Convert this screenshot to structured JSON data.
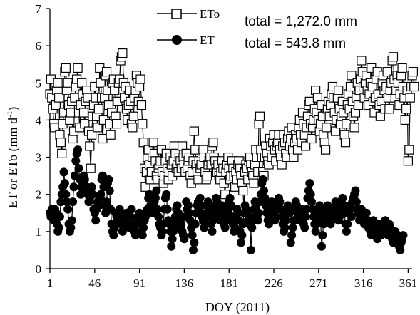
{
  "chart_data": {
    "type": "line",
    "xlabel": "DOY (2011)",
    "ylabel": "ET or ETo (mm d",
    "ylabel_sup": "-1",
    "ylabel_close": ")",
    "xlim": [
      1,
      365
    ],
    "ylim": [
      0,
      7
    ],
    "xticks": [
      1,
      46,
      91,
      136,
      181,
      226,
      271,
      316,
      361
    ],
    "yticks": [
      0,
      1,
      2,
      3,
      4,
      5,
      6,
      7
    ],
    "grid": false,
    "legend": "top-center",
    "series": [
      {
        "name": "ETo",
        "marker": "open-square",
        "color": "#000000",
        "total": "total = 1,272.0 mm",
        "values": [
          4.7,
          5.1,
          4.6,
          4.3,
          3.9,
          3.8,
          4.4,
          4.8,
          5.0,
          4.6,
          3.6,
          3.4,
          3.1,
          3.9,
          4.2,
          5.3,
          5.4,
          4.8,
          5.0,
          4.4,
          4.0,
          4.2,
          4.5,
          3.5,
          3.7,
          4.6,
          4.9,
          5.1,
          5.4,
          4.2,
          3.8,
          4.4,
          5.0,
          4.7,
          4.2,
          3.9,
          4.5,
          4.8,
          4.6,
          3.7,
          3.3,
          2.7,
          3.6,
          4.1,
          4.4,
          4.9,
          4.6,
          4.1,
          3.8,
          4.3,
          5.4,
          5.0,
          4.6,
          3.5,
          4.0,
          4.6,
          5.2,
          5.3,
          4.8,
          4.4,
          3.9,
          3.6,
          4.2,
          5.0,
          5.1,
          4.8,
          4.1,
          3.9,
          4.5,
          5.0,
          5.1,
          5.6,
          5.7,
          5.8,
          5.0,
          4.6,
          4.9,
          4.3,
          4.0,
          4.4,
          4.8,
          4.5,
          3.9,
          3.8,
          4.1,
          4.6,
          4.8,
          5.2,
          5.0,
          4.5,
          4.9,
          5.1,
          4.4,
          3.9,
          3.4,
          2.7,
          2.2,
          2.6,
          3.0,
          3.2,
          2.8,
          2.4,
          2.6,
          3.0,
          3.4,
          3.1,
          2.9,
          2.5,
          2.4,
          2.7,
          2.8,
          2.9,
          3.2,
          2.6,
          2.3,
          2.5,
          2.9,
          3.1,
          2.7,
          2.4,
          2.6,
          3.0,
          2.8,
          2.5,
          2.9,
          3.3,
          3.1,
          2.7,
          2.8,
          2.6,
          3.0,
          2.9,
          2.7,
          3.3,
          3.0,
          2.8,
          2.6,
          3.1,
          2.7,
          2.9,
          3.0,
          2.5,
          2.3,
          2.6,
          2.9,
          3.7,
          3.2,
          2.8,
          2.6,
          2.4,
          2.9,
          2.7,
          2.8,
          3.1,
          3.2,
          3.0,
          2.6,
          2.4,
          2.5,
          2.8,
          2.9,
          3.0,
          2.8,
          3.3,
          3.4,
          3.0,
          2.9,
          2.7,
          2.6,
          2.8,
          2.5,
          2.4,
          2.6,
          2.9,
          2.7,
          2.3,
          2.0,
          2.6,
          2.8,
          3.0,
          2.7,
          2.4,
          2.5,
          2.9,
          2.7,
          2.5,
          2.2,
          2.6,
          2.4,
          2.8,
          2.9,
          2.7,
          2.5,
          2.3,
          2.1,
          1.6,
          2.6,
          2.8,
          2.7,
          2.4,
          2.9,
          3.0,
          2.8,
          2.6,
          2.5,
          2.3,
          2.8,
          3.2,
          3.0,
          2.6,
          3.9,
          4.1,
          3.2,
          3.0,
          2.6,
          2.5,
          3.0,
          3.3,
          3.1,
          2.9,
          2.8,
          3.5,
          3.3,
          3.0,
          3.4,
          3.6,
          3.2,
          2.9,
          3.3,
          3.4,
          3.6,
          3.2,
          3.0,
          2.8,
          3.3,
          3.6,
          3.4,
          3.1,
          3.0,
          3.5,
          3.7,
          3.3,
          3.5,
          3.8,
          3.2,
          3.0,
          3.4,
          3.6,
          3.5,
          3.2,
          3.8,
          4.0,
          3.6,
          3.4,
          4.2,
          3.9,
          3.6,
          3.3,
          3.8,
          4.1,
          4.4,
          4.5,
          3.9,
          3.5,
          3.8,
          4.0,
          4.3,
          4.8,
          4.2,
          4.6,
          4.0,
          3.7,
          3.9,
          4.4,
          4.1,
          3.6,
          3.4,
          3.2,
          3.8,
          4.3,
          4.5,
          4.1,
          4.4,
          4.7,
          4.9,
          4.6,
          4.2,
          3.7,
          4.0,
          4.6,
          4.8,
          4.3,
          3.9,
          4.1,
          4.5,
          4.2,
          3.6,
          3.4,
          3.9,
          4.4,
          4.7,
          4.3,
          4.9,
          5.2,
          4.5,
          4.1,
          3.8,
          4.2,
          4.6,
          5.0,
          4.4,
          4.8,
          5.1,
          5.6,
          5.3,
          4.9,
          4.6,
          5.0,
          5.2,
          4.8,
          4.4,
          4.7,
          5.0,
          5.4,
          4.9,
          4.5,
          4.2,
          4.6,
          5.1,
          5.3,
          4.7,
          4.4,
          4.1,
          4.5,
          5.0,
          5.2,
          4.8,
          4.3,
          4.9,
          5.3,
          4.6,
          4.3,
          4.8,
          5.0,
          5.6,
          5.7,
          5.1,
          4.6,
          4.8,
          5.2,
          5.0,
          4.4,
          4.7,
          5.2,
          5.4,
          4.9,
          4.6,
          4.0,
          4.3,
          4.8,
          2.9,
          3.2,
          4.6,
          4.9,
          5.2,
          5.3,
          4.9
        ]
      },
      {
        "name": "ET",
        "marker": "filled-circle",
        "color": "#000000",
        "total": "total = 543.8 mm",
        "values": [
          1.5,
          1.4,
          1.6,
          1.5,
          1.3,
          1.6,
          1.5,
          1.2,
          1.0,
          1.1,
          1.4,
          1.8,
          2.0,
          2.2,
          2.6,
          2.3,
          2.0,
          1.8,
          1.6,
          1.2,
          1.0,
          1.1,
          1.3,
          1.8,
          2.2,
          2.5,
          2.9,
          3.1,
          3.2,
          2.7,
          2.4,
          2.0,
          2.2,
          2.3,
          2.5,
          2.4,
          2.1,
          2.2,
          2.0,
          1.8,
          1.9,
          2.1,
          2.2,
          2.0,
          1.6,
          1.5,
          1.3,
          1.6,
          1.8,
          1.7,
          1.9,
          2.0,
          2.4,
          2.5,
          2.2,
          1.7,
          1.5,
          1.8,
          2.3,
          2.4,
          2.1,
          1.6,
          1.2,
          1.0,
          0.9,
          1.1,
          1.5,
          1.4,
          1.3,
          1.4,
          1.6,
          1.5,
          1.2,
          1.0,
          1.1,
          1.3,
          1.4,
          1.5,
          1.2,
          1.3,
          1.1,
          1.4,
          1.6,
          1.2,
          1.1,
          1.0,
          0.9,
          1.2,
          1.4,
          1.3,
          1.5,
          1.2,
          1.0,
          0.9,
          1.1,
          1.3,
          1.4,
          1.5,
          1.6,
          1.9,
          2.0,
          1.7,
          1.6,
          1.5,
          1.7,
          1.8,
          1.9,
          2.1,
          1.6,
          1.4,
          1.2,
          1.1,
          0.9,
          1.0,
          1.2,
          1.6,
          1.9,
          2.0,
          1.6,
          1.3,
          1.2,
          1.0,
          0.6,
          0.8,
          1.0,
          1.2,
          1.4,
          1.6,
          1.7,
          1.5,
          1.3,
          1.1,
          1.2,
          1.0,
          0.9,
          0.8,
          1.4,
          1.8,
          1.6,
          1.7,
          1.5,
          1.3,
          1.1,
          0.9,
          0.5,
          0.7,
          1.2,
          1.5,
          1.7,
          1.8,
          1.6,
          1.9,
          1.7,
          1.4,
          1.3,
          1.1,
          1.2,
          1.5,
          1.7,
          1.8,
          1.6,
          1.4,
          1.2,
          1.0,
          1.3,
          1.5,
          1.7,
          1.9,
          1.8,
          1.6,
          1.4,
          1.3,
          1.6,
          1.7,
          1.5,
          1.2,
          1.1,
          1.3,
          1.5,
          1.6,
          1.8,
          1.9,
          1.7,
          1.4,
          1.2,
          1.0,
          1.1,
          1.4,
          1.6,
          1.5,
          1.3,
          1.0,
          0.7,
          0.9,
          1.2,
          1.5,
          1.7,
          1.6,
          1.5,
          1.3,
          1.2,
          1.4,
          0.5,
          1.1,
          1.3,
          1.6,
          1.8,
          1.7,
          1.4,
          1.3,
          1.5,
          1.8,
          2.0,
          2.3,
          2.4,
          2.1,
          1.9,
          1.7,
          1.5,
          1.3,
          1.2,
          1.4,
          1.6,
          1.8,
          1.7,
          1.5,
          1.3,
          1.4,
          1.6,
          1.7,
          1.9,
          1.8,
          1.6,
          1.4,
          1.2,
          1.0,
          1.1,
          1.3,
          1.5,
          1.7,
          1.6,
          1.5,
          0.7,
          0.9,
          1.1,
          1.3,
          1.6,
          1.8,
          1.7,
          1.5,
          1.4,
          1.3,
          1.5,
          1.6,
          1.4,
          1.2,
          1.1,
          1.4,
          1.6,
          1.9,
          2.1,
          2.3,
          2.0,
          1.8,
          1.6,
          1.4,
          1.2,
          1.0,
          1.2,
          1.4,
          1.5,
          1.7,
          1.3,
          0.6,
          0.9,
          1.2,
          1.4,
          1.5,
          1.6,
          1.7,
          1.4,
          1.3,
          1.2,
          1.3,
          1.5,
          1.4,
          1.6,
          1.8,
          1.7,
          1.5,
          1.3,
          1.4,
          1.6,
          1.8,
          1.9,
          1.7,
          1.5,
          1.2,
          1.0,
          1.2,
          1.5,
          1.7,
          1.6,
          1.4,
          1.8,
          1.9,
          2.0,
          2.1,
          1.8,
          1.6,
          1.5,
          1.3,
          1.4,
          1.6,
          1.5,
          1.3,
          1.2,
          1.4,
          1.5,
          1.3,
          1.1,
          1.2,
          1.0,
          0.9,
          1.1,
          1.3,
          1.2,
          1.0,
          0.9,
          0.8,
          1.0,
          1.2,
          1.1,
          0.9,
          1.0,
          1.1,
          1.2,
          1.3,
          1.1,
          1.0,
          0.9,
          1.2,
          1.1,
          1.0,
          0.8,
          0.7,
          0.9,
          1.0,
          0.8,
          0.7,
          0.9,
          0.6,
          0.5,
          0.7,
          0.8,
          0.9
        ]
      }
    ]
  }
}
